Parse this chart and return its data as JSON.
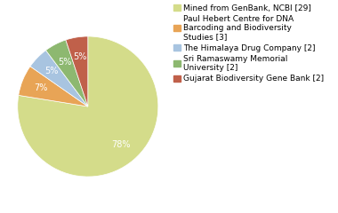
{
  "labels": [
    "Mined from GenBank, NCBI [29]",
    "Paul Hebert Centre for DNA\nBarcoding and Biodiversity\nStudies [3]",
    "The Himalaya Drug Company [2]",
    "Sri Ramaswamy Memorial\nUniversity [2]",
    "Gujarat Biodiversity Gene Bank [2]"
  ],
  "values": [
    76,
    7,
    5,
    5,
    5
  ],
  "colors": [
    "#d4dc8a",
    "#e8a456",
    "#a8c4e0",
    "#8db870",
    "#c0604a"
  ],
  "background_color": "#ffffff",
  "label_fontsize": 6.5,
  "pct_fontsize": 7
}
